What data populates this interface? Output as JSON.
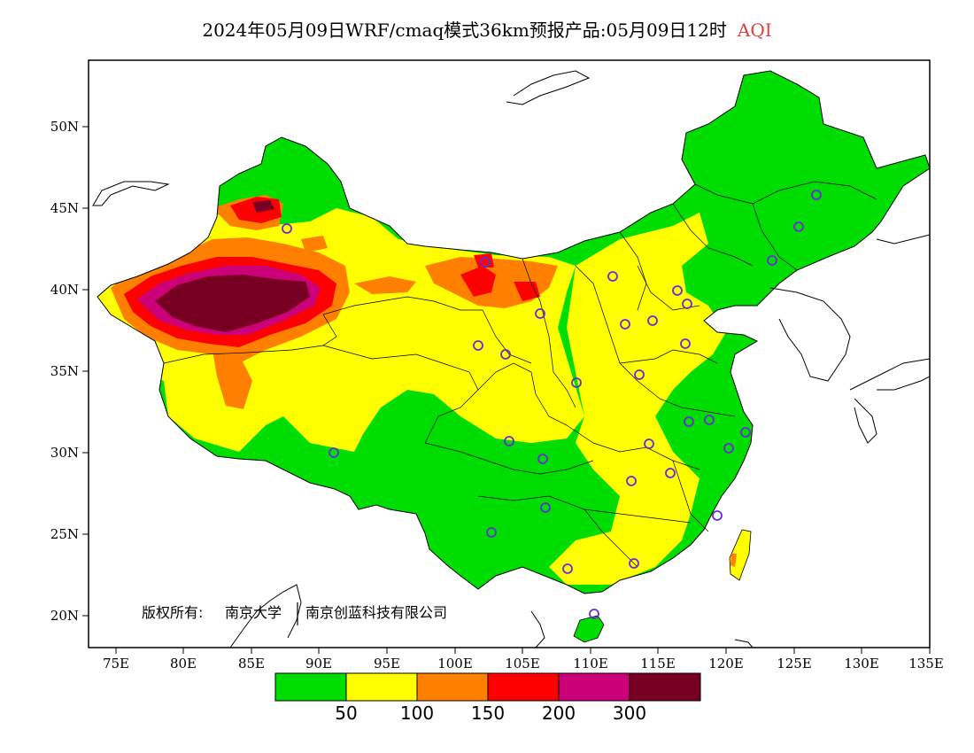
{
  "title": {
    "main": "2024年05月09日WRF/cmaq模式36km预报产品:05月09日12时",
    "variable": "AQI"
  },
  "copyright": {
    "owner_label": "版权所有:",
    "org1": "南京大学",
    "org2": "南京创蓝科技有限公司"
  },
  "map": {
    "lon_range": [
      73,
      135
    ],
    "lat_range": [
      18,
      54
    ],
    "lon_ticks": [
      "75E",
      "80E",
      "85E",
      "90E",
      "95E",
      "100E",
      "105E",
      "110E",
      "115E",
      "120E",
      "125E",
      "130E",
      "135E"
    ],
    "lat_ticks": [
      "20N",
      "25N",
      "30N",
      "35N",
      "40N",
      "45N",
      "50N"
    ]
  },
  "colorbar": {
    "colors": [
      "#00dd00",
      "#ffff00",
      "#ff8000",
      "#ff0000",
      "#cc0077",
      "#770022"
    ],
    "labels": [
      "50",
      "100",
      "150",
      "200",
      "300"
    ]
  },
  "colors": {
    "good": "#00dd00",
    "moderate": "#ffff00",
    "usg": "#ff8000",
    "unhealthy": "#ff0000",
    "very_unhealthy": "#cc0077",
    "hazardous": "#770022",
    "station_marker": "#6a2bd8"
  }
}
